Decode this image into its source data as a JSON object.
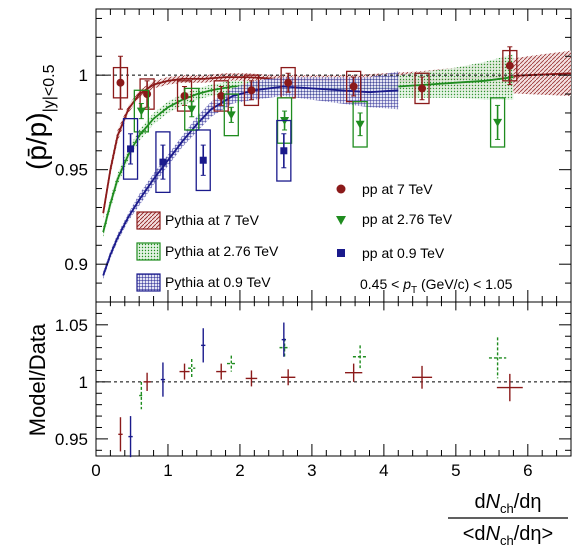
{
  "chart_data": [
    {
      "type": "scatter",
      "panel": "top",
      "ylabel": "(p̄/p)",
      "ylabel_sub": "|y|<0.5",
      "ylim": [
        0.88,
        1.035
      ],
      "xlim": [
        0,
        6.6
      ],
      "yticks": [
        "0.9",
        "0.95",
        "1"
      ],
      "reference_line": 1,
      "annotation": {
        "prefix": "0.45 < ",
        "var": "p",
        "sub": "T",
        "suffix": " (GeV/c) < 1.05"
      },
      "legend_right": [
        {
          "label": "pp at 7 TeV",
          "color": "#8b1a1a",
          "marker": "circle"
        },
        {
          "label": "pp at 2.76 TeV",
          "color": "#1f8c1f",
          "marker": "triangle-down"
        },
        {
          "label": "pp at 0.9 TeV",
          "color": "#1a1a8c",
          "marker": "square"
        }
      ],
      "legend_left": [
        {
          "label": "Pythia at 7 TeV",
          "color": "#8b1a1a"
        },
        {
          "label": "Pythia at 2.76 TeV",
          "color": "#1f8c1f"
        },
        {
          "label": "Pythia at 0.9 TeV",
          "color": "#1a1a8c"
        }
      ],
      "series": [
        {
          "name": "pp at 7 TeV",
          "color": "#8b1a1a",
          "marker": "circle",
          "x": [
            0.34,
            0.71,
            1.23,
            1.74,
            2.16,
            2.67,
            3.58,
            4.53,
            5.75
          ],
          "y": [
            0.996,
            0.99,
            0.989,
            0.989,
            0.992,
            0.996,
            0.994,
            0.993,
            1.005
          ],
          "stat": [
            0.014,
            0.007,
            0.005,
            0.005,
            0.005,
            0.005,
            0.005,
            0.006,
            0.01
          ],
          "sys": [
            0.008,
            0.008,
            0.008,
            0.008,
            0.008,
            0.008,
            0.008,
            0.008,
            0.008
          ]
        },
        {
          "name": "pp at 2.76 TeV",
          "color": "#1f8c1f",
          "marker": "triangle-down",
          "x": [
            0.63,
            1.33,
            1.88,
            2.62,
            3.67,
            5.58
          ],
          "y": [
            0.981,
            0.982,
            0.979,
            0.976,
            0.974,
            0.975
          ],
          "stat": [
            0.004,
            0.004,
            0.004,
            0.005,
            0.006,
            0.009
          ],
          "sys": [
            0.011,
            0.011,
            0.011,
            0.012,
            0.012,
            0.013
          ]
        },
        {
          "name": "pp at 0.9 TeV",
          "color": "#1a1a8c",
          "marker": "square",
          "x": [
            0.48,
            0.93,
            1.49,
            2.61
          ],
          "y": [
            0.961,
            0.954,
            0.955,
            0.96
          ],
          "stat": [
            0.008,
            0.009,
            0.008,
            0.009
          ],
          "sys": [
            0.016,
            0.016,
            0.016,
            0.016
          ]
        }
      ],
      "bands": [
        {
          "name": "Pythia at 7 TeV",
          "color": "#8b1a1a",
          "x": [
            0.1,
            0.2,
            0.3,
            0.45,
            0.6,
            0.8,
            1.0,
            1.2,
            1.5,
            1.8,
            2.1,
            2.5,
            3.0,
            3.5,
            4.0,
            4.5,
            5.0,
            5.5,
            6.0,
            6.6
          ],
          "y": [
            0.927,
            0.95,
            0.968,
            0.982,
            0.99,
            0.995,
            0.997,
            0.998,
            0.998,
            0.999,
            0.999,
            0.998,
            0.997,
            0.997,
            0.997,
            0.997,
            0.998,
            0.999,
            1.0,
            1.001
          ],
          "w": [
            0.003,
            0.003,
            0.003,
            0.002,
            0.002,
            0.002,
            0.002,
            0.002,
            0.002,
            0.002,
            0.002,
            0.002,
            0.003,
            0.003,
            0.004,
            0.005,
            0.006,
            0.008,
            0.01,
            0.012
          ]
        },
        {
          "name": "Pythia at 2.76 TeV",
          "color": "#1f8c1f",
          "x": [
            0.1,
            0.2,
            0.3,
            0.45,
            0.6,
            0.8,
            1.0,
            1.2,
            1.4,
            1.6,
            1.9,
            2.2,
            2.6,
            3.0,
            3.4,
            3.8,
            4.2,
            4.6,
            5.0,
            5.4,
            5.8
          ],
          "y": [
            0.917,
            0.932,
            0.945,
            0.958,
            0.968,
            0.977,
            0.983,
            0.987,
            0.99,
            0.992,
            0.994,
            0.994,
            0.994,
            0.993,
            0.993,
            0.993,
            0.994,
            0.995,
            0.996,
            0.997,
            0.999
          ],
          "w": [
            0.003,
            0.003,
            0.003,
            0.003,
            0.003,
            0.003,
            0.003,
            0.003,
            0.003,
            0.003,
            0.003,
            0.003,
            0.003,
            0.004,
            0.004,
            0.005,
            0.006,
            0.007,
            0.008,
            0.01,
            0.012
          ]
        },
        {
          "name": "Pythia at 0.9 TeV",
          "color": "#1a1a8c",
          "x": [
            0.1,
            0.2,
            0.3,
            0.45,
            0.6,
            0.8,
            1.0,
            1.2,
            1.4,
            1.6,
            1.9,
            2.2,
            2.6,
            3.0,
            3.4,
            3.8,
            4.2
          ],
          "y": [
            0.894,
            0.905,
            0.914,
            0.925,
            0.934,
            0.945,
            0.955,
            0.965,
            0.974,
            0.982,
            0.989,
            0.992,
            0.994,
            0.993,
            0.992,
            0.991,
            0.992
          ],
          "w": [
            0.002,
            0.002,
            0.002,
            0.002,
            0.003,
            0.003,
            0.003,
            0.003,
            0.004,
            0.004,
            0.004,
            0.005,
            0.005,
            0.006,
            0.007,
            0.008,
            0.01
          ]
        }
      ]
    },
    {
      "type": "scatter",
      "panel": "bottom",
      "ylabel": "Model/Data",
      "ylim": [
        0.935,
        1.07
      ],
      "xlim": [
        0,
        6.6
      ],
      "yticks": [
        "0.95",
        "1",
        "1.05"
      ],
      "xticks": [
        "0",
        "1",
        "2",
        "3",
        "4",
        "5",
        "6"
      ],
      "reference_line": 1,
      "xlabel": {
        "num_d": "d",
        "num_N": "N",
        "num_sub": "ch",
        "num_tail": "/dη",
        "den_open": "<d",
        "den_N": "N",
        "den_sub": "ch",
        "den_tail": "/dη>"
      },
      "series": [
        {
          "name": "7 TeV",
          "color": "#8b1a1a",
          "x": [
            0.34,
            0.71,
            1.23,
            1.74,
            2.16,
            2.67,
            3.58,
            4.53,
            5.75
          ],
          "y": [
            0.954,
            1.0,
            1.009,
            1.009,
            1.003,
            1.004,
            1.008,
            1.004,
            0.995
          ],
          "xerr": [
            0.03,
            0.05,
            0.07,
            0.07,
            0.08,
            0.1,
            0.12,
            0.14,
            0.18
          ],
          "yerr": [
            0.015,
            0.008,
            0.007,
            0.007,
            0.007,
            0.007,
            0.008,
            0.01,
            0.012
          ]
        },
        {
          "name": "2.76 TeV",
          "color": "#1f8c1f",
          "x": [
            0.63,
            1.33,
            1.88,
            2.62,
            3.67,
            5.58
          ],
          "y": [
            0.988,
            1.012,
            1.016,
            1.03,
            1.022,
            1.021
          ],
          "xerr": [
            0.03,
            0.05,
            0.06,
            0.07,
            0.1,
            0.12
          ],
          "yerr": [
            0.012,
            0.008,
            0.007,
            0.008,
            0.01,
            0.018
          ]
        },
        {
          "name": "0.9 TeV",
          "color": "#1a1a8c",
          "x": [
            0.48,
            0.93,
            1.49,
            2.61
          ],
          "y": [
            0.952,
            1.002,
            1.032,
            1.037
          ],
          "xerr": [
            0.03,
            0.03,
            0.03,
            0.03
          ],
          "yerr": [
            0.018,
            0.015,
            0.015,
            0.015
          ]
        }
      ]
    }
  ]
}
